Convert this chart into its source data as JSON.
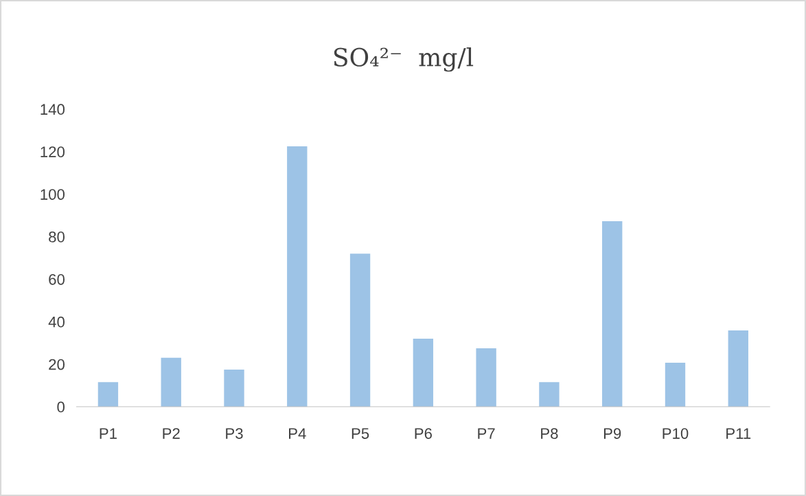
{
  "chart_data": {
    "type": "bar",
    "title": "SO₄²⁻  mg/l",
    "categories": [
      "P1",
      "P2",
      "P3",
      "P4",
      "P5",
      "P6",
      "P7",
      "P8",
      "P9",
      "P10",
      "P11"
    ],
    "values": [
      11.6,
      23,
      17.5,
      122.5,
      72,
      32,
      27.5,
      11.6,
      87.3,
      20.7,
      35.9
    ],
    "color": "#9dc3e6",
    "ylim": [
      0,
      140
    ],
    "yticks": [
      0,
      20,
      40,
      60,
      80,
      100,
      120,
      140
    ],
    "grid": false,
    "legend": false
  }
}
